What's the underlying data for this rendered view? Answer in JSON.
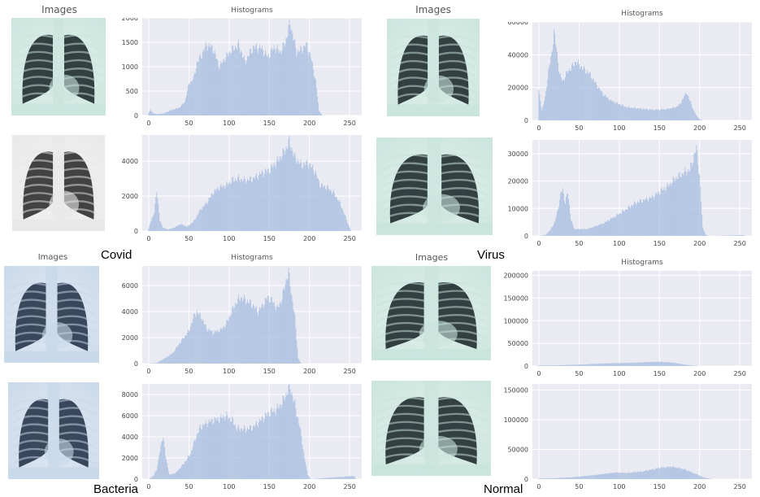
{
  "headers": {
    "images": "Images",
    "histograms": "Histograms"
  },
  "groups": [
    "Covid",
    "Virus",
    "Bacteria",
    "Normal"
  ],
  "colors": {
    "plot_bg": "#eaeaf2",
    "grid": "#ffffff",
    "bar": "#a9bfe0",
    "bar_peak": "#ffffff",
    "xray_dark": "#0d1a1c",
    "xray_light": "#c9e4dc"
  },
  "chart_data": [
    {
      "type": "bar",
      "group": "Covid",
      "title": "Histograms",
      "xlim": [
        -8,
        265
      ],
      "xticks": [
        0,
        50,
        100,
        150,
        200,
        250
      ],
      "ylim": [
        0,
        2000
      ],
      "yticks": [
        0,
        500,
        1000,
        1500,
        2000
      ],
      "grid": true,
      "profile": [
        [
          0,
          50
        ],
        [
          2,
          120
        ],
        [
          6,
          40
        ],
        [
          12,
          30
        ],
        [
          20,
          50
        ],
        [
          28,
          110
        ],
        [
          38,
          160
        ],
        [
          45,
          280
        ],
        [
          50,
          650
        ],
        [
          56,
          760
        ],
        [
          60,
          1080
        ],
        [
          66,
          1250
        ],
        [
          72,
          1450
        ],
        [
          80,
          1380
        ],
        [
          88,
          1000
        ],
        [
          96,
          1200
        ],
        [
          104,
          1350
        ],
        [
          112,
          1450
        ],
        [
          120,
          1100
        ],
        [
          130,
          1400
        ],
        [
          140,
          1380
        ],
        [
          148,
          1200
        ],
        [
          156,
          1400
        ],
        [
          164,
          1300
        ],
        [
          170,
          1500
        ],
        [
          176,
          1900
        ],
        [
          184,
          1300
        ],
        [
          190,
          1350
        ],
        [
          196,
          1450
        ],
        [
          202,
          1200
        ],
        [
          208,
          700
        ],
        [
          212,
          100
        ],
        [
          216,
          0
        ]
      ]
    },
    {
      "type": "bar",
      "group": "Covid",
      "title": "",
      "xlim": [
        -8,
        265
      ],
      "xticks": [
        0,
        50,
        100,
        150,
        200,
        250
      ],
      "ylim": [
        0,
        5500
      ],
      "yticks": [
        0,
        2000,
        4000
      ],
      "grid": true,
      "profile": [
        [
          0,
          150
        ],
        [
          3,
          600
        ],
        [
          7,
          1000
        ],
        [
          10,
          2400
        ],
        [
          14,
          600
        ],
        [
          18,
          200
        ],
        [
          24,
          80
        ],
        [
          32,
          200
        ],
        [
          40,
          400
        ],
        [
          48,
          250
        ],
        [
          56,
          550
        ],
        [
          64,
          1200
        ],
        [
          72,
          1600
        ],
        [
          80,
          2200
        ],
        [
          88,
          2500
        ],
        [
          96,
          2600
        ],
        [
          104,
          2900
        ],
        [
          112,
          3000
        ],
        [
          120,
          2900
        ],
        [
          130,
          3000
        ],
        [
          140,
          3300
        ],
        [
          150,
          3500
        ],
        [
          160,
          4000
        ],
        [
          168,
          4500
        ],
        [
          175,
          5100
        ],
        [
          182,
          4200
        ],
        [
          190,
          3800
        ],
        [
          198,
          3900
        ],
        [
          206,
          3500
        ],
        [
          214,
          2600
        ],
        [
          222,
          2500
        ],
        [
          230,
          2200
        ],
        [
          238,
          1600
        ],
        [
          244,
          900
        ],
        [
          248,
          400
        ],
        [
          252,
          0
        ]
      ]
    },
    {
      "type": "bar",
      "group": "Virus",
      "title": "Histograms",
      "xlim": [
        -8,
        265
      ],
      "xticks": [
        0,
        50,
        100,
        150,
        200,
        250
      ],
      "ylim": [
        0,
        60000
      ],
      "yticks": [
        0,
        20000,
        40000,
        60000
      ],
      "grid": true,
      "profile": [
        [
          0,
          18000
        ],
        [
          4,
          6000
        ],
        [
          8,
          14000
        ],
        [
          12,
          30000
        ],
        [
          16,
          40000
        ],
        [
          19,
          54000
        ],
        [
          22,
          44000
        ],
        [
          26,
          28000
        ],
        [
          30,
          24000
        ],
        [
          36,
          30000
        ],
        [
          42,
          33000
        ],
        [
          46,
          36000
        ],
        [
          50,
          34000
        ],
        [
          56,
          31000
        ],
        [
          62,
          29000
        ],
        [
          70,
          23000
        ],
        [
          80,
          16000
        ],
        [
          90,
          12000
        ],
        [
          100,
          10000
        ],
        [
          110,
          8000
        ],
        [
          120,
          7500
        ],
        [
          130,
          7000
        ],
        [
          140,
          6500
        ],
        [
          150,
          6500
        ],
        [
          160,
          7000
        ],
        [
          170,
          8000
        ],
        [
          176,
          10000
        ],
        [
          180,
          14000
        ],
        [
          184,
          17000
        ],
        [
          188,
          12000
        ],
        [
          192,
          7000
        ],
        [
          196,
          3000
        ],
        [
          200,
          800
        ],
        [
          204,
          0
        ]
      ]
    },
    {
      "type": "bar",
      "group": "Virus",
      "title": "",
      "xlim": [
        -8,
        265
      ],
      "xticks": [
        0,
        50,
        100,
        150,
        200,
        250
      ],
      "ylim": [
        0,
        35000
      ],
      "yticks": [
        0,
        10000,
        20000,
        30000
      ],
      "grid": true,
      "profile": [
        [
          0,
          0
        ],
        [
          8,
          300
        ],
        [
          14,
          2000
        ],
        [
          20,
          5000
        ],
        [
          24,
          10000
        ],
        [
          28,
          16000
        ],
        [
          30,
          17000
        ],
        [
          33,
          12000
        ],
        [
          36,
          16000
        ],
        [
          40,
          6000
        ],
        [
          44,
          2500
        ],
        [
          60,
          2500
        ],
        [
          80,
          4500
        ],
        [
          100,
          8000
        ],
        [
          110,
          10000
        ],
        [
          120,
          12000
        ],
        [
          130,
          13000
        ],
        [
          140,
          14000
        ],
        [
          150,
          16000
        ],
        [
          160,
          18000
        ],
        [
          170,
          21000
        ],
        [
          180,
          23000
        ],
        [
          188,
          24000
        ],
        [
          194,
          30000
        ],
        [
          196,
          32000
        ],
        [
          200,
          22000
        ],
        [
          204,
          3000
        ],
        [
          208,
          300
        ],
        [
          212,
          0
        ],
        [
          255,
          300
        ],
        [
          258,
          0
        ]
      ]
    },
    {
      "type": "bar",
      "group": "Bacteria",
      "title": "Histograms",
      "xlim": [
        -8,
        265
      ],
      "xticks": [
        0,
        50,
        100,
        150,
        200,
        250
      ],
      "ylim": [
        0,
        7500
      ],
      "yticks": [
        0,
        2000,
        4000,
        6000
      ],
      "grid": true,
      "profile": [
        [
          0,
          0
        ],
        [
          10,
          50
        ],
        [
          20,
          400
        ],
        [
          30,
          800
        ],
        [
          40,
          1700
        ],
        [
          50,
          2500
        ],
        [
          56,
          3600
        ],
        [
          60,
          4000
        ],
        [
          66,
          3500
        ],
        [
          72,
          2700
        ],
        [
          80,
          2400
        ],
        [
          90,
          2600
        ],
        [
          96,
          3000
        ],
        [
          102,
          3800
        ],
        [
          108,
          4600
        ],
        [
          114,
          5100
        ],
        [
          120,
          4900
        ],
        [
          128,
          4600
        ],
        [
          136,
          4000
        ],
        [
          142,
          4500
        ],
        [
          148,
          5100
        ],
        [
          154,
          4800
        ],
        [
          160,
          4200
        ],
        [
          166,
          5000
        ],
        [
          170,
          6200
        ],
        [
          174,
          7000
        ],
        [
          178,
          5200
        ],
        [
          182,
          3500
        ],
        [
          186,
          400
        ],
        [
          190,
          0
        ]
      ]
    },
    {
      "type": "bar",
      "group": "Bacteria",
      "title": "",
      "xlim": [
        -8,
        265
      ],
      "xticks": [
        0,
        50,
        100,
        150,
        200,
        250
      ],
      "ylim": [
        0,
        9000
      ],
      "yticks": [
        0,
        2000,
        4000,
        6000,
        8000
      ],
      "grid": true,
      "profile": [
        [
          0,
          0
        ],
        [
          6,
          300
        ],
        [
          10,
          900
        ],
        [
          14,
          2600
        ],
        [
          18,
          4200
        ],
        [
          21,
          2200
        ],
        [
          26,
          400
        ],
        [
          34,
          600
        ],
        [
          44,
          1500
        ],
        [
          52,
          2400
        ],
        [
          58,
          3800
        ],
        [
          64,
          4900
        ],
        [
          70,
          5200
        ],
        [
          78,
          5500
        ],
        [
          88,
          5700
        ],
        [
          96,
          6000
        ],
        [
          104,
          5600
        ],
        [
          110,
          4800
        ],
        [
          120,
          4700
        ],
        [
          130,
          4900
        ],
        [
          140,
          5600
        ],
        [
          150,
          6300
        ],
        [
          158,
          6500
        ],
        [
          166,
          7200
        ],
        [
          172,
          8200
        ],
        [
          176,
          8700
        ],
        [
          182,
          7000
        ],
        [
          188,
          5000
        ],
        [
          194,
          2000
        ],
        [
          198,
          400
        ],
        [
          202,
          0
        ],
        [
          255,
          300
        ],
        [
          258,
          0
        ]
      ]
    },
    {
      "type": "bar",
      "group": "Normal",
      "title": "Histograms",
      "xlim": [
        -8,
        265
      ],
      "xticks": [
        0,
        50,
        100,
        150,
        200,
        250
      ],
      "ylim": [
        0,
        210000
      ],
      "yticks": [
        0,
        50000,
        100000,
        150000,
        200000
      ],
      "grid": true,
      "profile": [
        [
          0,
          1500
        ],
        [
          20,
          1500
        ],
        [
          40,
          2500
        ],
        [
          60,
          4000
        ],
        [
          80,
          5500
        ],
        [
          100,
          6500
        ],
        [
          120,
          7500
        ],
        [
          140,
          9000
        ],
        [
          150,
          9500
        ],
        [
          160,
          8500
        ],
        [
          170,
          6500
        ],
        [
          180,
          3500
        ],
        [
          190,
          1200
        ],
        [
          198,
          300
        ],
        [
          202,
          0
        ]
      ]
    },
    {
      "type": "bar",
      "group": "Normal",
      "title": "",
      "xlim": [
        -8,
        265
      ],
      "xticks": [
        0,
        50,
        100,
        150,
        200,
        250
      ],
      "ylim": [
        0,
        160000
      ],
      "yticks": [
        0,
        50000,
        100000,
        150000
      ],
      "grid": true,
      "profile": [
        [
          0,
          1000
        ],
        [
          20,
          1500
        ],
        [
          40,
          3000
        ],
        [
          60,
          5500
        ],
        [
          80,
          8500
        ],
        [
          95,
          11000
        ],
        [
          110,
          10500
        ],
        [
          130,
          13000
        ],
        [
          150,
          19000
        ],
        [
          165,
          21000
        ],
        [
          180,
          17000
        ],
        [
          195,
          9000
        ],
        [
          205,
          3000
        ],
        [
          212,
          800
        ],
        [
          218,
          0
        ]
      ]
    }
  ]
}
